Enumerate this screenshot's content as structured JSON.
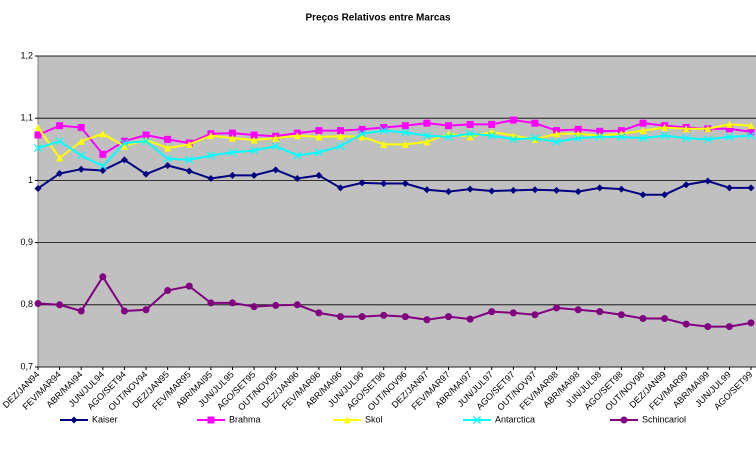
{
  "chart_data": {
    "type": "line",
    "title": "Preços Relativos entre Marcas",
    "categories": [
      "DEZ/JAN94",
      "FEV/MAR94",
      "ABR/MAI94",
      "JUN/JUL94",
      "AGO/SET94",
      "OUT/NOV94",
      "DEZ/JAN95",
      "FEV/MAR95",
      "ABR/MAI95",
      "JUN/JUL95",
      "AGO/SET95",
      "OUT/NOV95",
      "DEZ/JAN96",
      "FEV/MAR96",
      "ABR/MAI96",
      "JUN/JUL96",
      "AGO/SET96",
      "OUT/NOV96",
      "DEZ/JAN97",
      "FEV/MAR97",
      "ABR/MAI97",
      "JUN/JUL97",
      "AGO/SET97",
      "OUT/NOV97",
      "FEV/MAR98",
      "ABR/MAI98",
      "JUN/JUL98",
      "AGO/SET98",
      "OUT/NOV98",
      "DEZ/JAN99",
      "FEV/MAR99",
      "ABR/MAI99",
      "JUN/JUL99",
      "AGO/SET99"
    ],
    "series": [
      {
        "name": "Kaiser",
        "color": "#000080",
        "marker": "diamond",
        "values": [
          0.987,
          1.011,
          1.018,
          1.016,
          1.033,
          1.01,
          1.024,
          1.015,
          1.003,
          1.008,
          1.008,
          1.017,
          1.003,
          1.008,
          0.988,
          0.996,
          0.995,
          0.995,
          0.985,
          0.982,
          0.986,
          0.983,
          0.984,
          0.985,
          0.984,
          0.982,
          0.988,
          0.986,
          0.977,
          0.977,
          0.993,
          0.999,
          0.988,
          0.988
        ]
      },
      {
        "name": "Brahma",
        "color": "#ff00ff",
        "marker": "square",
        "values": [
          1.073,
          1.088,
          1.085,
          1.042,
          1.063,
          1.073,
          1.066,
          1.06,
          1.075,
          1.076,
          1.073,
          1.071,
          1.076,
          1.08,
          1.08,
          1.082,
          1.085,
          1.088,
          1.092,
          1.088,
          1.09,
          1.09,
          1.097,
          1.092,
          1.08,
          1.082,
          1.079,
          1.08,
          1.092,
          1.088,
          1.085,
          1.083,
          1.083,
          1.078
        ]
      },
      {
        "name": "Skol",
        "color": "#ffff00",
        "marker": "triangle",
        "values": [
          1.085,
          1.036,
          1.063,
          1.075,
          1.055,
          1.065,
          1.052,
          1.058,
          1.072,
          1.068,
          1.065,
          1.068,
          1.072,
          1.07,
          1.071,
          1.07,
          1.058,
          1.058,
          1.062,
          1.075,
          1.07,
          1.078,
          1.072,
          1.066,
          1.075,
          1.075,
          1.072,
          1.075,
          1.08,
          1.085,
          1.083,
          1.083,
          1.09,
          1.088
        ]
      },
      {
        "name": "Antarctica",
        "color": "#00ffff",
        "marker": "x",
        "values": [
          1.052,
          1.063,
          1.04,
          1.023,
          1.06,
          1.063,
          1.035,
          1.033,
          1.04,
          1.045,
          1.048,
          1.055,
          1.04,
          1.045,
          1.055,
          1.075,
          1.08,
          1.077,
          1.072,
          1.07,
          1.075,
          1.072,
          1.066,
          1.068,
          1.062,
          1.068,
          1.07,
          1.07,
          1.068,
          1.072,
          1.068,
          1.066,
          1.07,
          1.072
        ]
      },
      {
        "name": "Schincariol",
        "color": "#800080",
        "marker": "circle",
        "values": [
          0.802,
          0.8,
          0.79,
          0.845,
          0.79,
          0.792,
          0.823,
          0.83,
          0.803,
          0.803,
          0.797,
          0.799,
          0.8,
          0.787,
          0.781,
          0.781,
          0.783,
          0.781,
          0.776,
          0.781,
          0.777,
          0.789,
          0.787,
          0.784,
          0.795,
          0.792,
          0.789,
          0.784,
          0.778,
          0.778,
          0.769,
          0.765,
          0.765,
          0.771
        ]
      }
    ],
    "ylim": [
      0.7,
      1.2
    ],
    "yticks": [
      {
        "value": 0.7,
        "label": "0,7"
      },
      {
        "value": 0.8,
        "label": "0,8"
      },
      {
        "value": 0.9,
        "label": "0,9"
      },
      1,
      {
        "value": 1.1,
        "label": "1,1"
      },
      {
        "value": 1.2,
        "label": "1,2"
      }
    ],
    "grid": true,
    "legend": "bottom"
  }
}
